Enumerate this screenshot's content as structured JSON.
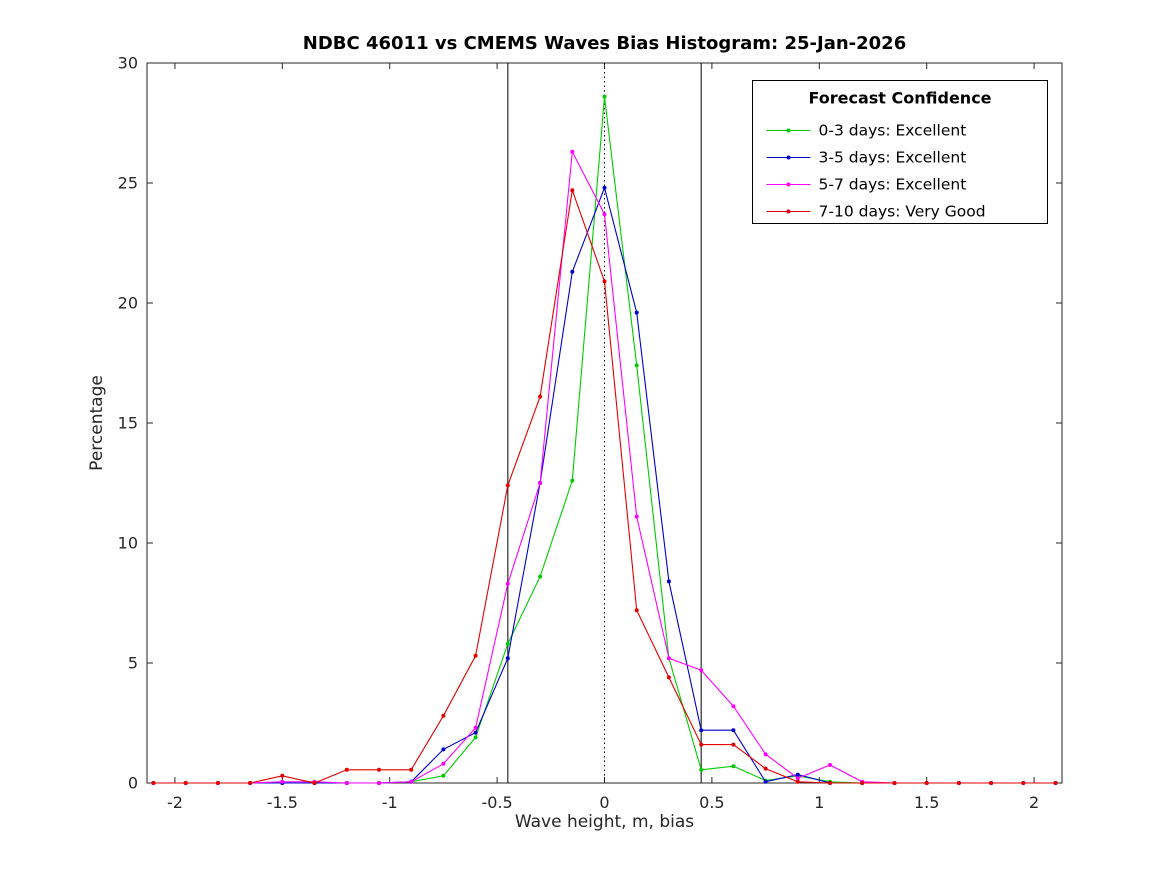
{
  "title": "NDBC 46011 vs CMEMS Waves Bias Histogram: 25-Jan-2026",
  "chart_data": {
    "type": "line",
    "title": "NDBC 46011 vs CMEMS Waves Bias Histogram: 25-Jan-2026",
    "xlabel": "Wave height, m, bias",
    "ylabel": "Percentage",
    "xlim": [
      -2.13,
      2.13
    ],
    "ylim": [
      0,
      30
    ],
    "xticks": [
      -2,
      -1.5,
      -1,
      -0.5,
      0,
      0.5,
      1,
      1.5,
      2
    ],
    "yticks": [
      0,
      5,
      10,
      15,
      20,
      25,
      30
    ],
    "grid": false,
    "x": [
      -2.1,
      -1.95,
      -1.8,
      -1.65,
      -1.5,
      -1.35,
      -1.2,
      -1.05,
      -0.9,
      -0.75,
      -0.6,
      -0.45,
      -0.3,
      -0.15,
      0,
      0.15,
      0.3,
      0.45,
      0.6,
      0.75,
      0.9,
      1.05,
      1.2,
      1.35,
      1.5,
      1.65,
      1.8,
      1.95,
      2.1
    ],
    "series": [
      {
        "name": "0-3 days: Excellent",
        "color": "#00cc00",
        "values": [
          0,
          0,
          0,
          0,
          0,
          0,
          0,
          0,
          0.05,
          0.3,
          1.9,
          5.8,
          8.6,
          12.6,
          28.6,
          17.4,
          5.2,
          0.55,
          0.7,
          0.1,
          0.3,
          0.05,
          0,
          0,
          0,
          0,
          0,
          0,
          0
        ]
      },
      {
        "name": "3-5 days: Excellent",
        "color": "#0000cc",
        "values": [
          0,
          0,
          0,
          0,
          0,
          0,
          0,
          0,
          0.05,
          1.4,
          2.1,
          5.2,
          12.5,
          21.3,
          24.8,
          19.6,
          8.4,
          2.2,
          2.2,
          0.05,
          0.35,
          0,
          0,
          0,
          0,
          0,
          0,
          0,
          0
        ]
      },
      {
        "name": "5-7 days: Excellent",
        "color": "#ff00ff",
        "values": [
          0,
          0,
          0,
          0,
          0.05,
          0.05,
          0,
          0,
          0.05,
          0.8,
          2.3,
          8.3,
          12.5,
          26.3,
          23.7,
          11.1,
          5.2,
          4.7,
          3.2,
          1.2,
          0.2,
          0.75,
          0.05,
          0,
          0,
          0,
          0,
          0,
          0
        ]
      },
      {
        "name": "7-10 days: Very Good",
        "color": "#e60000",
        "values": [
          0,
          0,
          0,
          0,
          0.3,
          0,
          0.55,
          0.55,
          0.55,
          2.8,
          5.3,
          12.4,
          16.1,
          24.7,
          20.9,
          7.2,
          4.4,
          1.6,
          1.6,
          0.6,
          0.05,
          0,
          0,
          0,
          0,
          0,
          0,
          0,
          0
        ]
      }
    ],
    "vlines": [
      {
        "x": -0.45,
        "style": "solid"
      },
      {
        "x": 0,
        "style": "dotted"
      },
      {
        "x": 0.45,
        "style": "solid"
      }
    ],
    "legend": {
      "title": "Forecast Confidence",
      "position": "top-right"
    }
  }
}
